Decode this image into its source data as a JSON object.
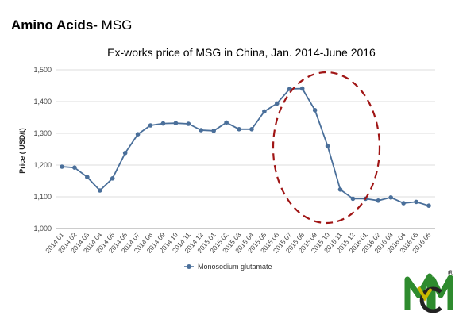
{
  "header": {
    "bold_text": "Amino Acids-",
    "normal_text": " MSG"
  },
  "logo": {
    "name": "cm-logo-icon",
    "mark": "®",
    "colors": {
      "green": "#2e8b2e",
      "yellow": "#c9b800",
      "dark": "#222222"
    }
  },
  "chart_data": {
    "type": "line",
    "title": "Ex-works price of MSG in China, Jan. 2014-June 2016",
    "ylabel": "Price ( USD/t)",
    "xlabel": "",
    "ylim": [
      1000,
      1500
    ],
    "yticks": [
      "1,000",
      "1,100",
      "1,200",
      "1,300",
      "1,400",
      "1,500"
    ],
    "ytick_values": [
      1000,
      1100,
      1200,
      1300,
      1400,
      1500
    ],
    "grid": true,
    "legend": "bottom-center",
    "categories": [
      "2014 01",
      "2014 02",
      "2014 03",
      "2014 04",
      "2014 05",
      "2014 06",
      "2014 07",
      "2014 08",
      "2014 09",
      "2014 10",
      "2014 11",
      "2014 12",
      "2015 01",
      "2015 02",
      "2015 03",
      "2015 04",
      "2015 05",
      "2015 06",
      "2015 07",
      "2015 08",
      "2015 09",
      "2015 10",
      "2015 11",
      "2015 12",
      "2016 01",
      "2016 02",
      "2016 03",
      "2016 04",
      "2016 05",
      "2016 06"
    ],
    "series": [
      {
        "name": "Monosodium glutamate",
        "color": "#4a6f9a",
        "values": [
          1195,
          1192,
          1162,
          1120,
          1158,
          1238,
          1297,
          1325,
          1331,
          1332,
          1330,
          1310,
          1308,
          1334,
          1313,
          1313,
          1369,
          1394,
          1440,
          1441,
          1373,
          1260,
          1123,
          1094,
          1094,
          1088,
          1098,
          1080,
          1084,
          1072
        ]
      }
    ],
    "annotation": {
      "type": "ellipse",
      "color": "#a01515",
      "style": "dashed"
    }
  }
}
